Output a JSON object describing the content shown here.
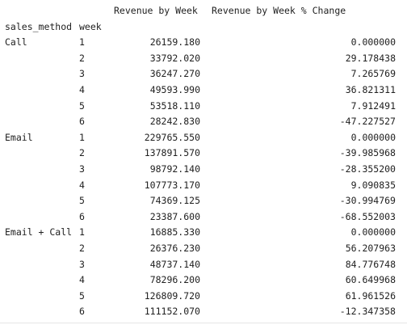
{
  "table": {
    "columns": {
      "revenue": "Revenue by Week",
      "pct_change": "Revenue by Week % Change"
    },
    "index_names": {
      "method": "sales_method",
      "week": "week"
    },
    "groups": [
      {
        "method": "Call",
        "rows": [
          {
            "week": "1",
            "revenue": "26159.180",
            "pct": "0.000000"
          },
          {
            "week": "2",
            "revenue": "33792.020",
            "pct": "29.178438"
          },
          {
            "week": "3",
            "revenue": "36247.270",
            "pct": "7.265769"
          },
          {
            "week": "4",
            "revenue": "49593.990",
            "pct": "36.821311"
          },
          {
            "week": "5",
            "revenue": "53518.110",
            "pct": "7.912491"
          },
          {
            "week": "6",
            "revenue": "28242.830",
            "pct": "-47.227527"
          }
        ]
      },
      {
        "method": "Email",
        "rows": [
          {
            "week": "1",
            "revenue": "229765.550",
            "pct": "0.000000"
          },
          {
            "week": "2",
            "revenue": "137891.570",
            "pct": "-39.985968"
          },
          {
            "week": "3",
            "revenue": "98792.140",
            "pct": "-28.355200"
          },
          {
            "week": "4",
            "revenue": "107773.170",
            "pct": "9.090835"
          },
          {
            "week": "5",
            "revenue": "74369.125",
            "pct": "-30.994769"
          },
          {
            "week": "6",
            "revenue": "23387.600",
            "pct": "-68.552003"
          }
        ]
      },
      {
        "method": "Email + Call",
        "rows": [
          {
            "week": "1",
            "revenue": "16885.330",
            "pct": "0.000000"
          },
          {
            "week": "2",
            "revenue": "26376.230",
            "pct": "56.207963"
          },
          {
            "week": "3",
            "revenue": "48737.140",
            "pct": "84.776748"
          },
          {
            "week": "4",
            "revenue": "78296.200",
            "pct": "60.649968"
          },
          {
            "week": "5",
            "revenue": "126809.720",
            "pct": "61.961526"
          },
          {
            "week": "6",
            "revenue": "111152.070",
            "pct": "-12.347358"
          }
        ]
      }
    ]
  }
}
